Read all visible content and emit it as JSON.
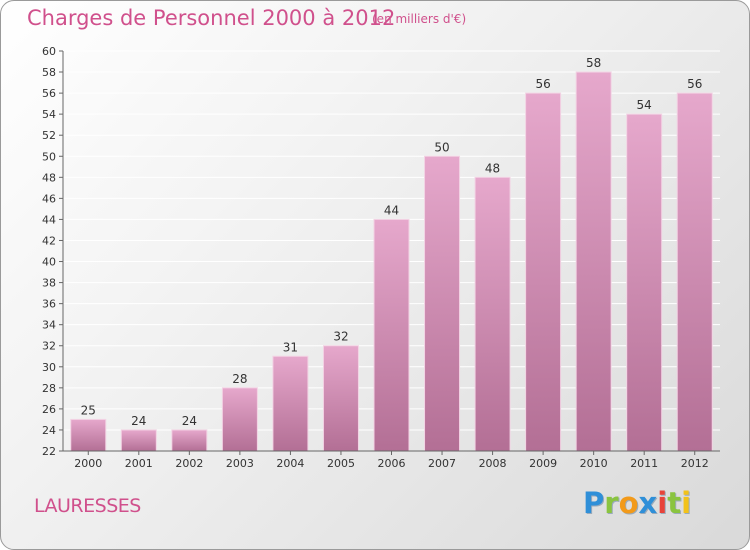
{
  "header": {
    "title": "Charges de Personnel 2000 à 2012",
    "subtitle": "(en milliers d'€)"
  },
  "footer": {
    "commune": "LAURESSES",
    "brand": [
      "P",
      "r",
      "o",
      "x",
      "i",
      "t",
      "i"
    ]
  },
  "colors": {
    "title": "#d0508c",
    "bar_top": "#e6a8cc",
    "bar_bottom": "#b36f95",
    "grid": "#ffffff"
  },
  "chart_data": {
    "type": "bar",
    "title": "Charges de Personnel 2000 à 2012",
    "subtitle": "(en milliers d'€)",
    "categories": [
      "2000",
      "2001",
      "2002",
      "2003",
      "2004",
      "2005",
      "2006",
      "2007",
      "2008",
      "2009",
      "2010",
      "2011",
      "2012"
    ],
    "values": [
      25,
      24,
      24,
      28,
      31,
      32,
      44,
      50,
      48,
      56,
      58,
      54,
      56
    ],
    "ylim": [
      22,
      60
    ],
    "yticks": [
      22,
      24,
      26,
      28,
      30,
      32,
      34,
      36,
      38,
      40,
      42,
      44,
      46,
      48,
      50,
      52,
      54,
      56,
      58,
      60
    ],
    "grid": true,
    "xlabel": "",
    "ylabel": ""
  }
}
